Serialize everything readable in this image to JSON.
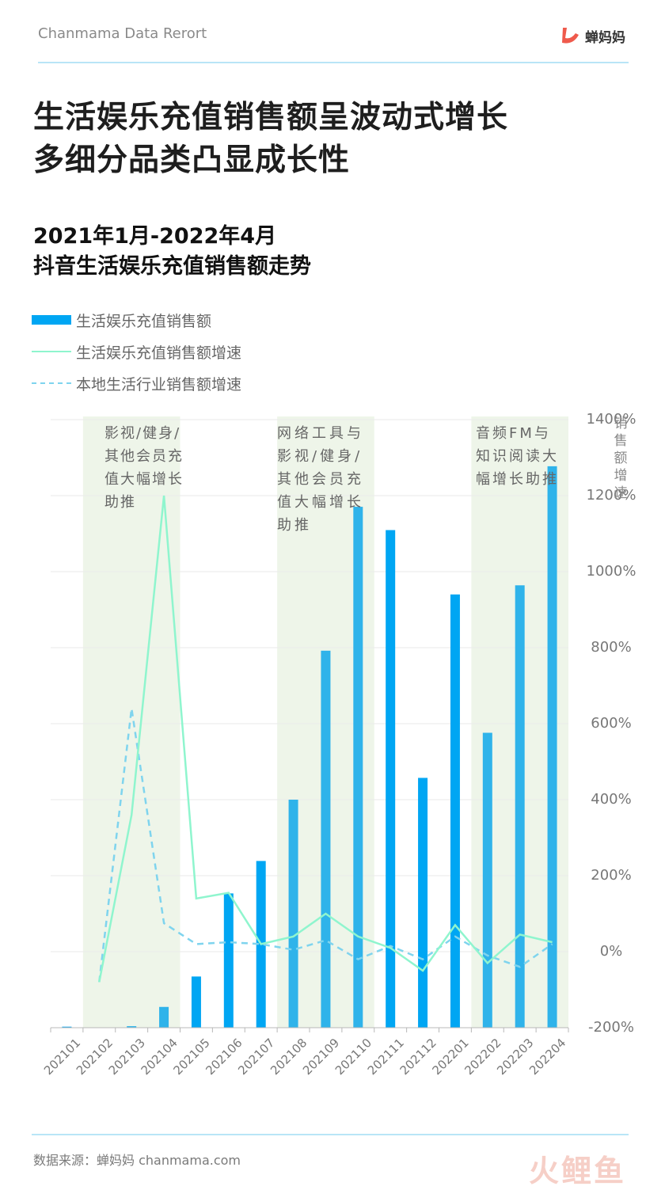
{
  "header": {
    "report_name": "Chanmama Data Rerort",
    "brand_name": "蝉妈妈"
  },
  "headline": {
    "line1": "生活娱乐充值销售额呈波动式增长",
    "line2": "多细分品类凸显成长性"
  },
  "subhead": {
    "line1": "2021年1月-2022年4月",
    "line2": "抖音生活娱乐充值销售额走势"
  },
  "footer": {
    "source": "数据来源：蝉妈妈 chanmama.com",
    "watermark": "火鲤鱼"
  },
  "colors": {
    "bar": "#00a6f3",
    "bar_highlight": "#2fb3ea",
    "growth_line": "#8ff5ce",
    "local_line": "#7fd4ee",
    "highlight_bg": "#eef5e9"
  },
  "chart_data": {
    "type": "bar",
    "categories": [
      "202101",
      "202102",
      "202103",
      "202104",
      "202105",
      "202106",
      "202107",
      "202108",
      "202109",
      "202110",
      "202111",
      "202112",
      "202201",
      "202202",
      "202203",
      "202204"
    ],
    "series": [
      {
        "name": "生活娱乐充值销售额",
        "type": "bar",
        "axis": "left",
        "values": [
          0.2,
          0,
          0.3,
          4.1,
          10.1,
          26.5,
          32.9,
          45.0,
          74.4,
          102.8,
          98.2,
          49.3,
          85.5,
          58.2,
          87.3,
          110.8
        ]
      },
      {
        "name": "生活娱乐充值销售额增速",
        "type": "line",
        "axis": "right",
        "values": [
          null,
          -80,
          360,
          1200,
          140,
          155,
          20,
          40,
          100,
          40,
          10,
          -50,
          70,
          -30,
          45,
          25
        ]
      },
      {
        "name": "本地生活行业销售额增速",
        "type": "dashed-line",
        "axis": "right",
        "values": [
          null,
          -80,
          640,
          75,
          20,
          25,
          20,
          5,
          30,
          -20,
          15,
          -20,
          40,
          -10,
          -40,
          20
        ]
      }
    ],
    "left_axis": {
      "ylim": [
        0,
        120
      ],
      "tick_labels_visible": false
    },
    "right_axis": {
      "label": "销售额增速",
      "ylim": [
        -200,
        1400
      ],
      "ticks": [
        -200,
        0,
        200,
        400,
        600,
        800,
        1000,
        1200,
        1400
      ],
      "tick_suffix": "%"
    },
    "grid": "horizontal",
    "highlight_regions": [
      {
        "start": "202102",
        "end": "202104",
        "text": [
          "影视/健身/",
          "其他会员充",
          "值大幅增长",
          "助推"
        ]
      },
      {
        "start": "202108",
        "end": "202110",
        "text": [
          "网络工具与",
          "影视/健身/",
          "其他会员充",
          "值大幅增长",
          "助推"
        ]
      },
      {
        "start": "202202",
        "end": "202204",
        "text": [
          "音频FM与",
          "知识阅读大",
          "幅增长助推"
        ]
      }
    ]
  }
}
